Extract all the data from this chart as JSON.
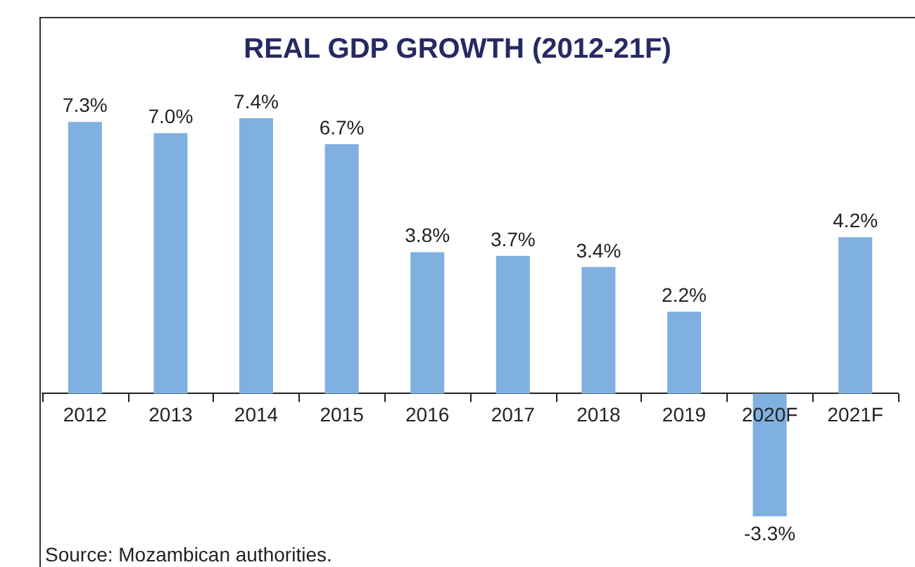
{
  "chart_data": {
    "type": "bar",
    "title": "REAL GDP GROWTH (2012-21F)",
    "categories": [
      "2012",
      "2013",
      "2014",
      "2015",
      "2016",
      "2017",
      "2018",
      "2019",
      "2020F",
      "2021F"
    ],
    "values": [
      7.3,
      7.0,
      7.4,
      6.7,
      3.8,
      3.7,
      3.4,
      2.2,
      -3.3,
      4.2
    ],
    "value_labels": [
      "7.3%",
      "7.0%",
      "7.4%",
      "6.7%",
      "3.8%",
      "3.7%",
      "3.4%",
      "2.2%",
      "-3.3%",
      "4.2%"
    ],
    "color": "#7fb0e0",
    "annotations": [
      "Source: Mozambican authorities."
    ]
  }
}
